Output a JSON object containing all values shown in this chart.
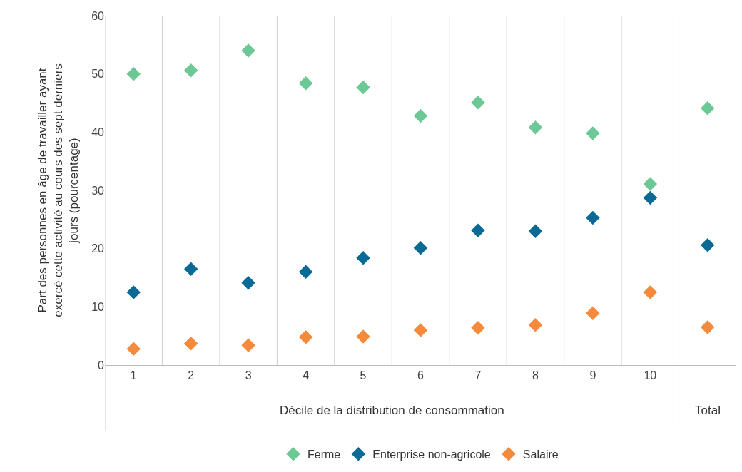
{
  "chart_data": {
    "type": "scatter",
    "xlabel": "Décile de la distribution de consommation",
    "ylabel": "Part des personnes en âge de travailler ayant exercé cette activité au cours des sept derniers jours (pourcentage)",
    "categories": [
      "1",
      "2",
      "3",
      "4",
      "5",
      "6",
      "7",
      "8",
      "9",
      "10",
      null
    ],
    "annotations": [
      "Total"
    ],
    "series": [
      {
        "name": "Ferme",
        "color": "#6cc895",
        "values": [
          50,
          50.6,
          54,
          48.4,
          47.7,
          42.8,
          45.1,
          40.8,
          39.8,
          31.1,
          44.1
        ]
      },
      {
        "name": "Enterprise non-agricole",
        "color": "#0a6a96",
        "values": [
          12.5,
          16.5,
          14.1,
          16,
          18.4,
          20.1,
          23.1,
          23,
          25.3,
          28.7,
          20.6
        ]
      },
      {
        "name": "Salaire",
        "color": "#f58a3c",
        "values": [
          2.8,
          3.7,
          3.4,
          4.8,
          4.9,
          6,
          6.4,
          6.9,
          8.9,
          12.5,
          6.5
        ]
      }
    ],
    "ylim": [
      0,
      60
    ],
    "yticks": [
      0,
      10,
      20,
      30,
      40,
      50,
      60
    ],
    "marker": "diamond",
    "legend": "bottom"
  }
}
